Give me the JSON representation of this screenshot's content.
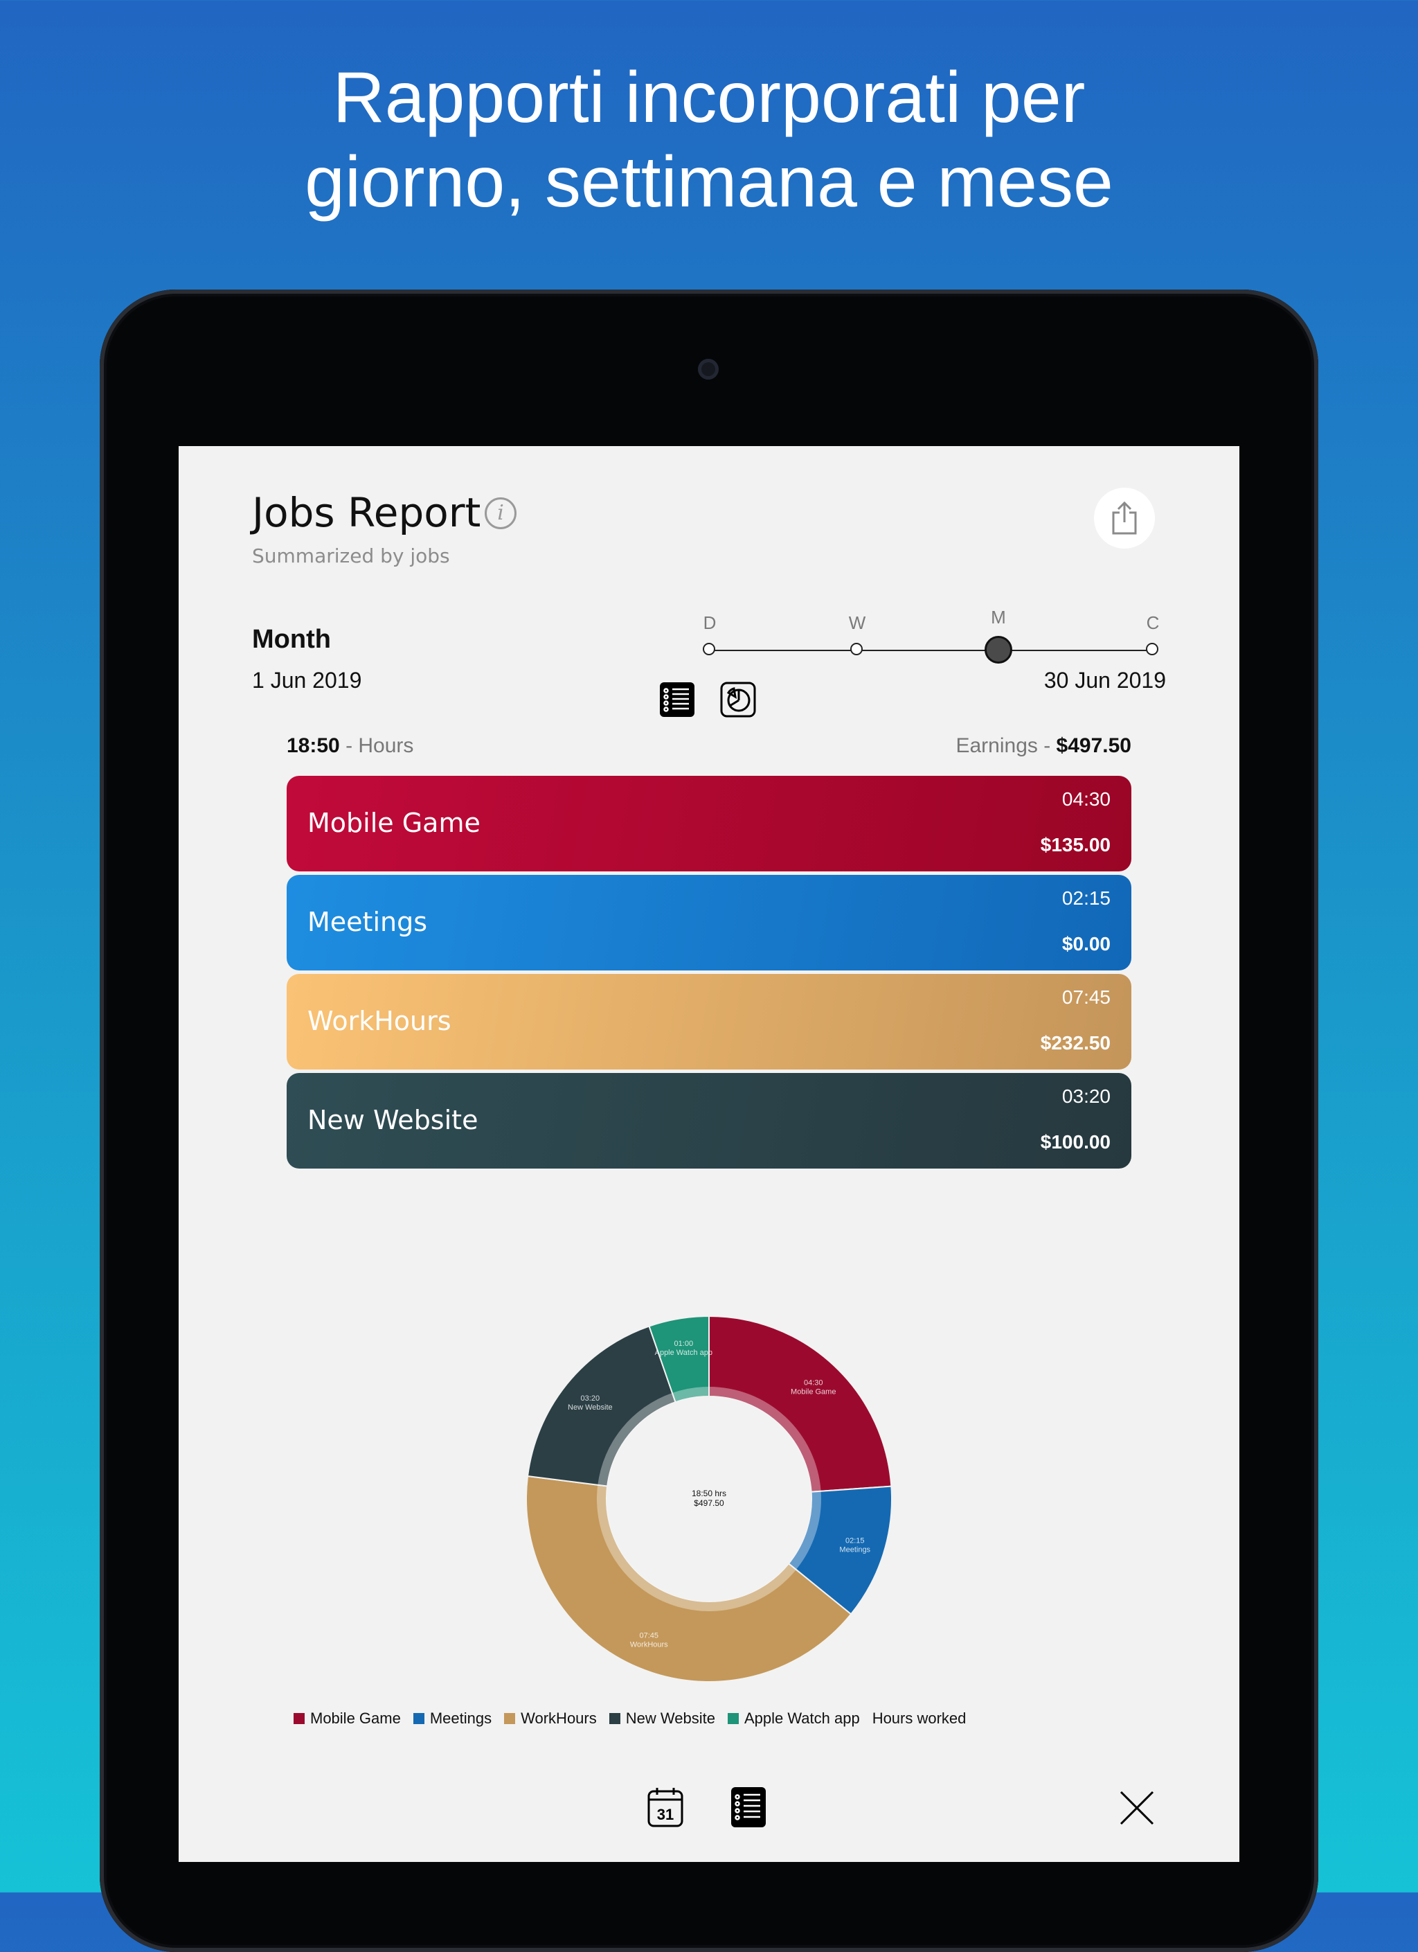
{
  "headline": {
    "line1": "Rapporti incorporati per",
    "line2": "giorno, settimana e mese"
  },
  "header": {
    "title": "Jobs Report",
    "info_glyph": "i",
    "subtitle": "Summarized by jobs",
    "share_icon": "share-icon"
  },
  "period": {
    "label": "Month",
    "start": "1 Jun 2019",
    "end": "30 Jun 2019",
    "scale": [
      {
        "label": "D",
        "active": false
      },
      {
        "label": "W",
        "active": false
      },
      {
        "label": "M",
        "active": true
      },
      {
        "label": "C",
        "active": false
      }
    ]
  },
  "view_toggle": {
    "list_icon": "list-view-icon",
    "chart_icon": "pie-chart-icon",
    "active": "list"
  },
  "totals": {
    "hours_value": "18:50",
    "hours_suffix": " - Hours",
    "earnings_prefix": "Earnings - ",
    "earnings_value": "$497.50"
  },
  "jobs": [
    {
      "name": "Mobile Game",
      "time": "04:30",
      "earnings": "$135.00",
      "color": "#a8082e"
    },
    {
      "name": "Meetings",
      "time": "02:15",
      "earnings": "$0.00",
      "color": "#1873c6"
    },
    {
      "name": "WorkHours",
      "time": "07:45",
      "earnings": "$232.50",
      "color": "#d8a868"
    },
    {
      "name": "New Website",
      "time": "03:20",
      "earnings": "$100.00",
      "color": "#2c4349"
    }
  ],
  "chart_data": {
    "type": "pie",
    "categories": [
      "Mobile Game",
      "Meetings",
      "WorkHours",
      "New Website",
      "Apple Watch app"
    ],
    "values": [
      4.5,
      2.25,
      7.75,
      3.333,
      1.0
    ],
    "labels": [
      "04:30",
      "02:15",
      "07:45",
      "03:20",
      "01:00"
    ],
    "colors": [
      "#9b0a2e",
      "#1469b2",
      "#c4985a",
      "#2b3f45",
      "#1e9478"
    ],
    "center_text": [
      "18:50 hrs",
      "$497.50"
    ],
    "legend": [
      "Mobile Game",
      "Meetings",
      "WorkHours",
      "New Website",
      "Apple Watch app"
    ],
    "legend_suffix": "Hours worked",
    "legend_position": "bottom"
  },
  "toolbar": {
    "calendar_day": "31",
    "calendar_icon": "calendar-icon",
    "list_icon": "report-list-icon",
    "close_icon": "close-icon"
  }
}
